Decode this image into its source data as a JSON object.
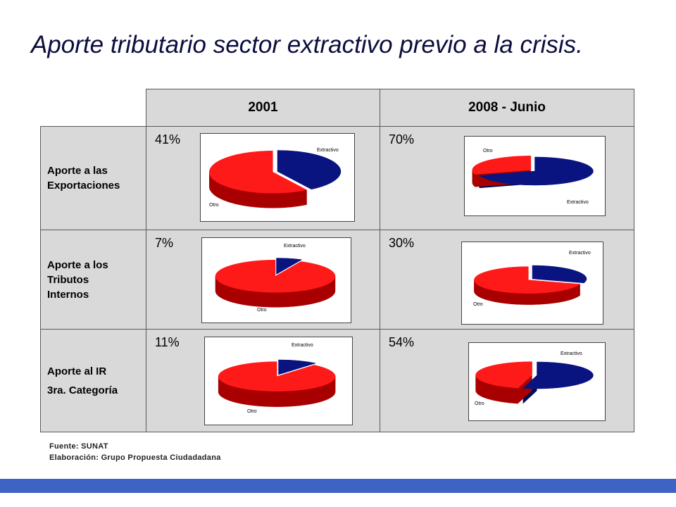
{
  "title": "Aporte tributario sector extractivo previo a la crisis.",
  "table": {
    "columns": [
      "2001",
      "2008 - Junio"
    ],
    "rows": [
      {
        "label_lines": [
          "Aporte a las",
          "Exportaciones"
        ],
        "values": [
          "41%",
          "70%"
        ]
      },
      {
        "label_lines": [
          "Aporte a los",
          "Tributos",
          "Internos"
        ],
        "values": [
          "7%",
          "30%"
        ]
      },
      {
        "label_lines": [
          "Aporte al IR",
          "3ra. Categoría"
        ],
        "values": [
          "11%",
          "54%"
        ]
      }
    ]
  },
  "source_lines": [
    "Fuente: SUNAT",
    "Elaboración: Grupo Propuesta Ciudadadana"
  ],
  "colors": {
    "extractivo": "#0a1480",
    "extractivo_side": "#050a55",
    "otro": "#ff1a1a",
    "otro_side": "#a80000",
    "header_bg": "#d9d9d9",
    "bottom_bar": "#3d63c4"
  },
  "chart_data": [
    {
      "type": "pie",
      "row": "Aporte a las Exportaciones",
      "column": "2001",
      "labels": [
        "Extractivo",
        "Otro"
      ],
      "values": [
        41,
        59
      ]
    },
    {
      "type": "pie",
      "row": "Aporte a las Exportaciones",
      "column": "2008 - Junio",
      "labels": [
        "Extractivo",
        "Otro"
      ],
      "values": [
        70,
        30
      ]
    },
    {
      "type": "pie",
      "row": "Aporte a los Tributos Internos",
      "column": "2001",
      "labels": [
        "Extractivo",
        "Otro"
      ],
      "values": [
        7,
        93
      ]
    },
    {
      "type": "pie",
      "row": "Aporte a los Tributos Internos",
      "column": "2008 - Junio",
      "labels": [
        "Extractivo",
        "Otro"
      ],
      "values": [
        30,
        70
      ]
    },
    {
      "type": "pie",
      "row": "Aporte al IR 3ra. Categoría",
      "column": "2001",
      "labels": [
        "Extractivo",
        "Otro"
      ],
      "values": [
        11,
        89
      ]
    },
    {
      "type": "pie",
      "row": "Aporte al IR 3ra. Categoría",
      "column": "2008 - Junio",
      "labels": [
        "Extractivo",
        "Otro"
      ],
      "values": [
        54,
        46
      ]
    }
  ]
}
